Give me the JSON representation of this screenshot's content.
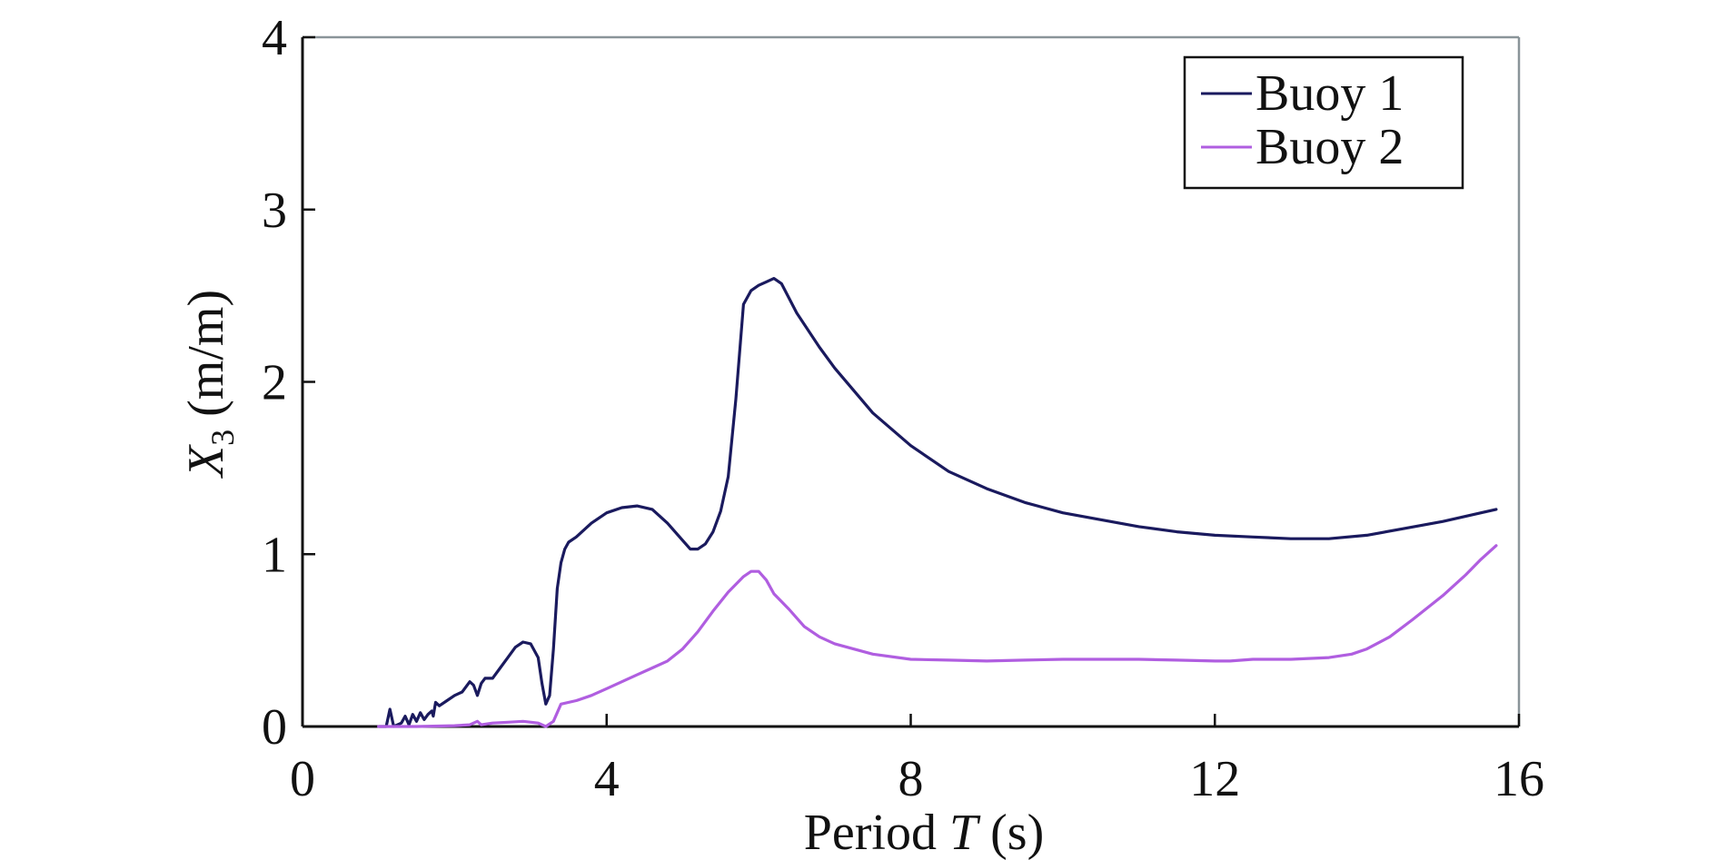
{
  "chart_data": {
    "type": "line",
    "xlabel": {
      "prefix": "Period ",
      "italic": "T",
      "suffix": " (s)"
    },
    "ylabel": {
      "italic": "X",
      "sub": "3",
      "suffix": " (m/m)"
    },
    "xlim": [
      0,
      16
    ],
    "ylim": [
      0,
      4
    ],
    "xticks": [
      "0",
      "4",
      "8",
      "12",
      "16"
    ],
    "yticks": [
      "0",
      "1",
      "2",
      "3",
      "4"
    ],
    "grid": false,
    "legend_position": "top-right",
    "series": [
      {
        "name": "Buoy 1",
        "color": "#1a1a5e",
        "points": [
          [
            1.0,
            0.0
          ],
          [
            1.1,
            0.0
          ],
          [
            1.15,
            0.1
          ],
          [
            1.2,
            0.0
          ],
          [
            1.3,
            0.02
          ],
          [
            1.35,
            0.06
          ],
          [
            1.4,
            0.01
          ],
          [
            1.45,
            0.07
          ],
          [
            1.5,
            0.03
          ],
          [
            1.55,
            0.08
          ],
          [
            1.6,
            0.04
          ],
          [
            1.65,
            0.07
          ],
          [
            1.7,
            0.09
          ],
          [
            1.72,
            0.06
          ],
          [
            1.75,
            0.14
          ],
          [
            1.8,
            0.12
          ],
          [
            1.9,
            0.15
          ],
          [
            2.0,
            0.18
          ],
          [
            2.1,
            0.2
          ],
          [
            2.2,
            0.26
          ],
          [
            2.25,
            0.24
          ],
          [
            2.3,
            0.18
          ],
          [
            2.35,
            0.25
          ],
          [
            2.4,
            0.28
          ],
          [
            2.5,
            0.28
          ],
          [
            2.6,
            0.34
          ],
          [
            2.7,
            0.4
          ],
          [
            2.8,
            0.46
          ],
          [
            2.9,
            0.49
          ],
          [
            3.0,
            0.48
          ],
          [
            3.1,
            0.4
          ],
          [
            3.15,
            0.25
          ],
          [
            3.2,
            0.13
          ],
          [
            3.25,
            0.18
          ],
          [
            3.3,
            0.45
          ],
          [
            3.35,
            0.8
          ],
          [
            3.4,
            0.95
          ],
          [
            3.45,
            1.03
          ],
          [
            3.5,
            1.07
          ],
          [
            3.6,
            1.1
          ],
          [
            3.8,
            1.18
          ],
          [
            4.0,
            1.24
          ],
          [
            4.2,
            1.27
          ],
          [
            4.4,
            1.28
          ],
          [
            4.6,
            1.26
          ],
          [
            4.8,
            1.18
          ],
          [
            5.0,
            1.08
          ],
          [
            5.1,
            1.03
          ],
          [
            5.2,
            1.03
          ],
          [
            5.3,
            1.06
          ],
          [
            5.4,
            1.13
          ],
          [
            5.5,
            1.25
          ],
          [
            5.6,
            1.45
          ],
          [
            5.7,
            1.9
          ],
          [
            5.8,
            2.45
          ],
          [
            5.9,
            2.53
          ],
          [
            6.0,
            2.56
          ],
          [
            6.1,
            2.58
          ],
          [
            6.2,
            2.6
          ],
          [
            6.3,
            2.57
          ],
          [
            6.5,
            2.4
          ],
          [
            6.8,
            2.2
          ],
          [
            7.0,
            2.08
          ],
          [
            7.5,
            1.82
          ],
          [
            8.0,
            1.63
          ],
          [
            8.5,
            1.48
          ],
          [
            9.0,
            1.38
          ],
          [
            9.5,
            1.3
          ],
          [
            10.0,
            1.24
          ],
          [
            10.5,
            1.2
          ],
          [
            11.0,
            1.16
          ],
          [
            11.5,
            1.13
          ],
          [
            12.0,
            1.11
          ],
          [
            12.5,
            1.1
          ],
          [
            13.0,
            1.09
          ],
          [
            13.5,
            1.09
          ],
          [
            14.0,
            1.11
          ],
          [
            14.5,
            1.15
          ],
          [
            15.0,
            1.19
          ],
          [
            15.5,
            1.24
          ],
          [
            15.7,
            1.26
          ]
        ]
      },
      {
        "name": "Buoy 2",
        "color": "#b05ee0",
        "points": [
          [
            1.0,
            0.0
          ],
          [
            1.5,
            0.0
          ],
          [
            2.0,
            0.005
          ],
          [
            2.2,
            0.01
          ],
          [
            2.3,
            0.03
          ],
          [
            2.35,
            0.01
          ],
          [
            2.5,
            0.02
          ],
          [
            2.7,
            0.025
          ],
          [
            2.9,
            0.03
          ],
          [
            3.1,
            0.02
          ],
          [
            3.2,
            0.0
          ],
          [
            3.3,
            0.03
          ],
          [
            3.4,
            0.13
          ],
          [
            3.6,
            0.15
          ],
          [
            3.8,
            0.18
          ],
          [
            4.0,
            0.22
          ],
          [
            4.2,
            0.26
          ],
          [
            4.4,
            0.3
          ],
          [
            4.6,
            0.34
          ],
          [
            4.8,
            0.38
          ],
          [
            5.0,
            0.45
          ],
          [
            5.2,
            0.55
          ],
          [
            5.4,
            0.67
          ],
          [
            5.6,
            0.78
          ],
          [
            5.8,
            0.87
          ],
          [
            5.9,
            0.9
          ],
          [
            6.0,
            0.9
          ],
          [
            6.1,
            0.85
          ],
          [
            6.2,
            0.77
          ],
          [
            6.4,
            0.68
          ],
          [
            6.6,
            0.58
          ],
          [
            6.8,
            0.52
          ],
          [
            7.0,
            0.48
          ],
          [
            7.5,
            0.42
          ],
          [
            8.0,
            0.39
          ],
          [
            8.5,
            0.385
          ],
          [
            9.0,
            0.38
          ],
          [
            9.5,
            0.385
          ],
          [
            10.0,
            0.39
          ],
          [
            10.5,
            0.39
          ],
          [
            11.0,
            0.39
          ],
          [
            11.5,
            0.385
          ],
          [
            12.0,
            0.38
          ],
          [
            12.2,
            0.38
          ],
          [
            12.5,
            0.39
          ],
          [
            13.0,
            0.39
          ],
          [
            13.5,
            0.4
          ],
          [
            13.8,
            0.42
          ],
          [
            14.0,
            0.45
          ],
          [
            14.3,
            0.52
          ],
          [
            14.6,
            0.62
          ],
          [
            15.0,
            0.76
          ],
          [
            15.3,
            0.88
          ],
          [
            15.5,
            0.97
          ],
          [
            15.7,
            1.05
          ]
        ]
      }
    ]
  }
}
